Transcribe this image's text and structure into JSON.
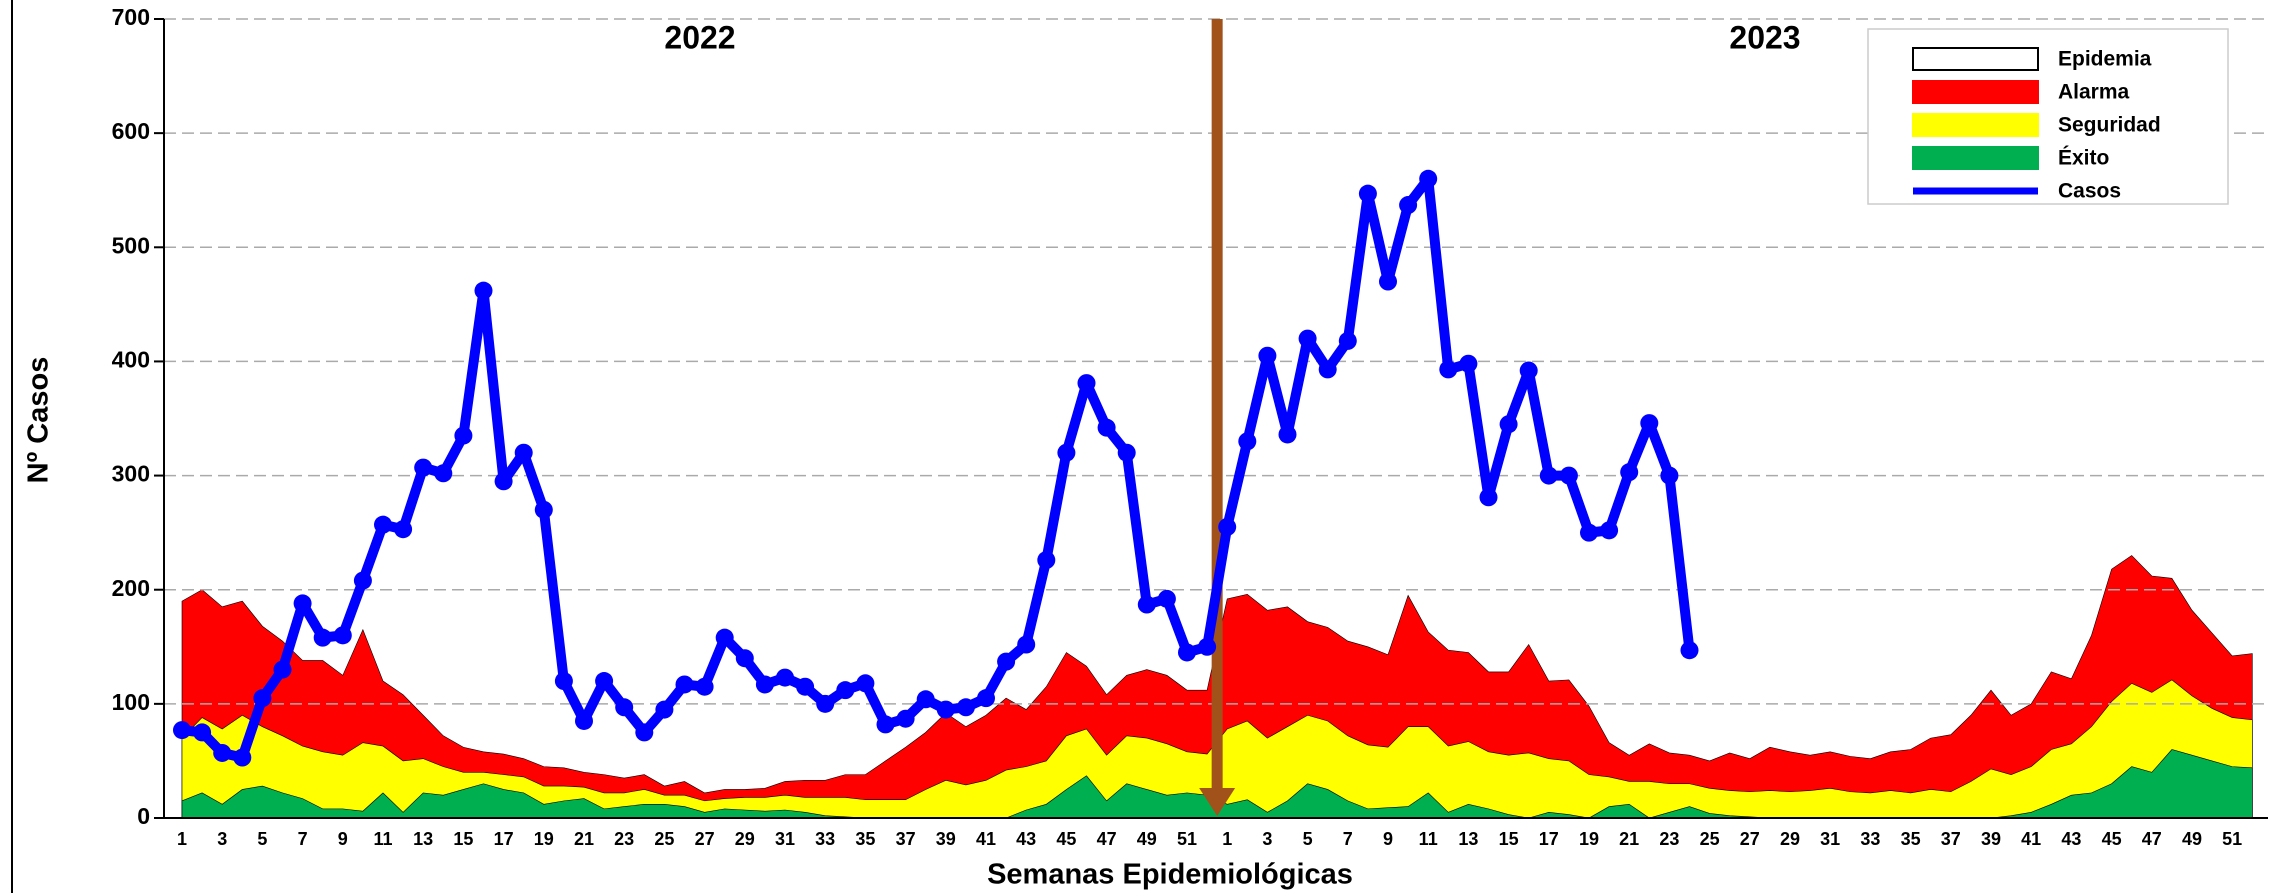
{
  "chart_data": {
    "type": "endemic-channel",
    "annotations": [
      "2022",
      "2023"
    ],
    "xlabel": "Semanas Epidemiológicas",
    "ylabel": "Nº Casos",
    "categories": [
      "1",
      null,
      "3",
      null,
      "5",
      null,
      "7",
      null,
      "9",
      null,
      "11",
      null,
      "13",
      null,
      "15",
      null,
      "17",
      null,
      "19",
      null,
      "21",
      null,
      "23",
      null,
      "25",
      null,
      "27",
      null,
      "29",
      null,
      "31",
      null,
      "33",
      null,
      "35",
      null,
      "37",
      null,
      "39",
      null,
      "41",
      null,
      "43",
      null,
      "45",
      null,
      "47",
      null,
      "49",
      null,
      "51",
      null,
      "1",
      null,
      "3",
      null,
      "5",
      null,
      "7",
      null,
      "9",
      null,
      "11",
      null,
      "13",
      null,
      "15",
      null,
      "17",
      null,
      "19",
      null,
      "21",
      null,
      "23",
      null,
      "25",
      null,
      "27",
      null,
      "29",
      null,
      "31",
      null,
      "33",
      null,
      "35",
      null,
      "37",
      null,
      "39",
      null,
      "41",
      null,
      "43",
      null,
      "45",
      null,
      "47",
      null,
      "49",
      null,
      "51",
      null
    ],
    "ylim": [
      0,
      700
    ],
    "yticks": [
      0,
      100,
      200,
      300,
      400,
      500,
      600,
      700
    ],
    "grid": true,
    "series": [
      {
        "name": "Epidemia",
        "color": "#ffffff"
      },
      {
        "name": "Alarma",
        "color": "#ff0000",
        "type": "area",
        "values": [
          190,
          200,
          185,
          190,
          168,
          155,
          138,
          138,
          125,
          165,
          120,
          108,
          90,
          72,
          62,
          58,
          56,
          52,
          45,
          44,
          40,
          38,
          35,
          38,
          28,
          32,
          22,
          25,
          25,
          26,
          32,
          33,
          33,
          38,
          38,
          50,
          62,
          75,
          92,
          80,
          90,
          105,
          95,
          115,
          145,
          133,
          108,
          125,
          130,
          125,
          112,
          112,
          192,
          196,
          182,
          185,
          172,
          167,
          155,
          150,
          143,
          195,
          163,
          147,
          145,
          128,
          128,
          152,
          120,
          121,
          98,
          66,
          55,
          65,
          57,
          55,
          50,
          57,
          52,
          62,
          58,
          55,
          58,
          54,
          52,
          58,
          60,
          70,
          73,
          90,
          112,
          90,
          100,
          128,
          122,
          160,
          218,
          230,
          212,
          210,
          182,
          162,
          142,
          144
        ]
      },
      {
        "name": "Seguridad",
        "color": "#ffff00",
        "type": "area",
        "values": [
          70,
          88,
          78,
          90,
          80,
          72,
          63,
          58,
          55,
          66,
          63,
          50,
          52,
          45,
          40,
          40,
          38,
          36,
          28,
          28,
          27,
          22,
          22,
          25,
          20,
          20,
          15,
          17,
          18,
          18,
          20,
          18,
          18,
          18,
          16,
          16,
          16,
          25,
          33,
          29,
          33,
          42,
          45,
          50,
          72,
          78,
          55,
          72,
          70,
          65,
          58,
          56,
          78,
          85,
          70,
          80,
          90,
          85,
          72,
          64,
          62,
          80,
          80,
          63,
          67,
          58,
          55,
          57,
          52,
          50,
          38,
          36,
          32,
          32,
          30,
          30,
          26,
          24,
          23,
          24,
          23,
          24,
          26,
          23,
          22,
          24,
          22,
          25,
          23,
          32,
          43,
          38,
          45,
          60,
          65,
          80,
          102,
          118,
          110,
          121,
          107,
          96,
          88,
          86
        ]
      },
      {
        "name": "Éxito",
        "color": "#00b050",
        "type": "area",
        "values": [
          15,
          22,
          12,
          25,
          28,
          22,
          17,
          8,
          8,
          6,
          22,
          5,
          22,
          20,
          25,
          30,
          25,
          22,
          12,
          15,
          17,
          8,
          10,
          12,
          12,
          10,
          5,
          8,
          7,
          6,
          7,
          5,
          2,
          1,
          0,
          0,
          0,
          0,
          0,
          0,
          0,
          0,
          7,
          12,
          25,
          37,
          15,
          30,
          25,
          20,
          22,
          20,
          12,
          16,
          5,
          15,
          30,
          25,
          15,
          8,
          9,
          10,
          22,
          5,
          12,
          8,
          3,
          0,
          5,
          3,
          0,
          10,
          12,
          0,
          5,
          10,
          4,
          2,
          1,
          0,
          0,
          0,
          0,
          0,
          0,
          0,
          0,
          0,
          0,
          0,
          0,
          2,
          5,
          12,
          20,
          22,
          30,
          45,
          40,
          60,
          55,
          50,
          45,
          44
        ]
      },
      {
        "name": "Casos",
        "color": "#0000ff",
        "type": "line",
        "values": [
          77,
          75,
          57,
          53,
          105,
          130,
          188,
          158,
          160,
          208,
          257,
          253,
          307,
          302,
          335,
          462,
          295,
          320,
          270,
          120,
          85,
          120,
          97,
          75,
          95,
          117,
          115,
          158,
          140,
          117,
          123,
          115,
          100,
          112,
          118,
          82,
          87,
          104,
          95,
          97,
          105,
          137,
          152,
          226,
          320,
          381,
          342,
          320,
          187,
          192,
          145,
          150,
          255,
          330,
          405,
          336,
          420,
          393,
          418,
          547,
          470,
          537,
          560,
          393,
          398,
          281,
          345,
          392,
          300,
          300,
          250,
          252,
          303,
          346,
          300,
          147,
          null,
          null,
          null,
          null,
          null,
          null,
          null,
          null,
          null,
          null,
          null,
          null,
          null,
          null,
          null,
          null,
          null,
          null,
          null,
          null,
          null,
          null,
          null,
          null,
          null,
          null,
          null,
          null
        ]
      }
    ]
  }
}
